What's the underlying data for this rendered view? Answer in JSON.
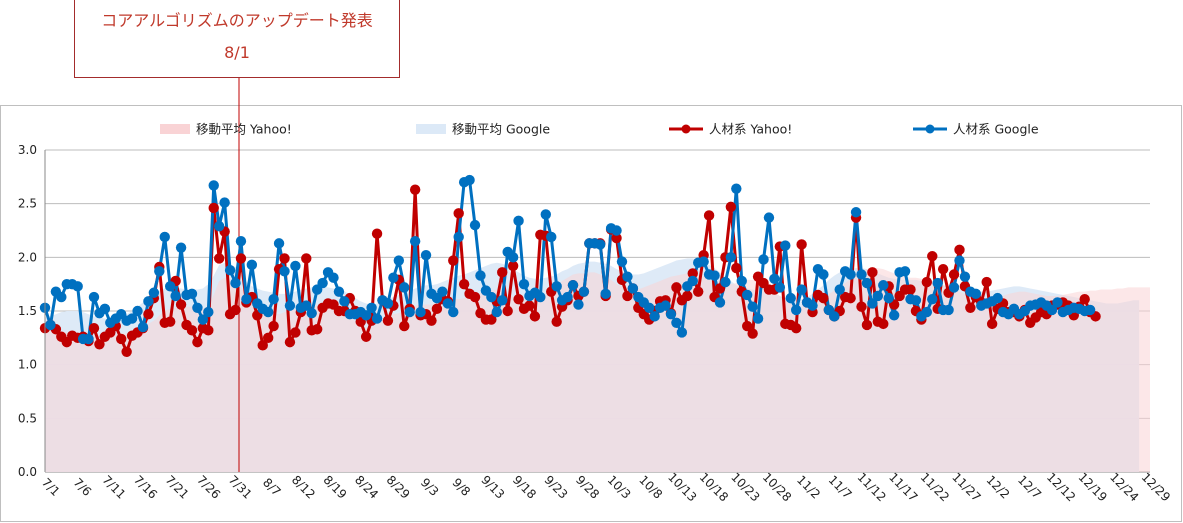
{
  "annotation": {
    "title": "コアアルゴリズムのアップデート発表",
    "date": "8/1"
  },
  "colors": {
    "yahoo_line": "#c00000",
    "google_line": "#0070c0",
    "yahoo_area": "#f9d3d5",
    "google_area": "#dce9f7",
    "overlap_area": "#e4dbea",
    "annotation": "#c0392b"
  },
  "chart_data": {
    "type": "line",
    "ylim": [
      0,
      3
    ],
    "yticks": [
      "0.0",
      "0.5",
      "1.0",
      "1.5",
      "2.0",
      "2.5",
      "3.0"
    ],
    "xticks": [
      "7/1",
      "7/6",
      "7/11",
      "7/16",
      "7/21",
      "7/26",
      "7/31",
      "8/7",
      "8/12",
      "8/19",
      "8/24",
      "8/29",
      "9/3",
      "9/8",
      "9/13",
      "9/18",
      "9/23",
      "9/28",
      "10/3",
      "10/8",
      "10/13",
      "10/18",
      "10/23",
      "10/28",
      "11/2",
      "11/7",
      "11/12",
      "11/17",
      "11/22",
      "11/27",
      "12/2",
      "12/7",
      "12/12",
      "12/19",
      "12/24",
      "12/29"
    ],
    "legend_position": "top",
    "grid": true,
    "series": [
      {
        "name": "移動平均 Yahoo!",
        "kind": "area",
        "values": [
          1.31,
          1.31,
          1.32,
          1.31,
          1.3,
          1.29,
          1.28,
          1.29,
          1.28,
          1.27,
          1.27,
          1.27,
          1.28,
          1.28,
          1.29,
          1.29,
          1.31,
          1.33,
          1.35,
          1.38,
          1.41,
          1.46,
          1.5,
          1.52,
          1.53,
          1.53,
          1.54,
          1.54,
          1.53,
          1.52,
          1.55,
          1.65,
          1.78,
          1.81,
          1.79,
          1.79,
          1.72,
          1.65,
          1.63,
          1.62,
          1.55,
          1.5,
          1.48,
          1.47,
          1.49,
          1.5,
          1.52,
          1.53,
          1.53,
          1.54,
          1.55,
          1.56,
          1.55,
          1.53,
          1.5,
          1.48,
          1.46,
          1.4,
          1.36,
          1.34,
          1.35,
          1.38,
          1.41,
          1.45,
          1.47,
          1.48,
          1.5,
          1.52,
          1.55,
          1.56,
          1.56,
          1.56,
          1.58,
          1.6,
          1.6,
          1.61,
          1.61,
          1.62,
          1.64,
          1.65,
          1.67,
          1.68,
          1.69,
          1.7,
          1.68,
          1.66,
          1.63,
          1.62,
          1.6,
          1.6,
          1.61,
          1.63,
          1.66,
          1.69,
          1.73,
          1.78,
          1.81,
          1.84,
          1.85,
          1.85,
          1.86,
          1.86,
          1.84,
          1.82,
          1.79,
          1.75,
          1.73,
          1.71,
          1.7,
          1.7,
          1.72,
          1.74,
          1.76,
          1.78,
          1.8,
          1.82,
          1.83,
          1.84,
          1.85,
          1.85,
          1.84,
          1.82,
          1.8,
          1.78,
          1.76,
          1.75,
          1.75,
          1.76,
          1.78,
          1.79,
          1.79,
          1.78,
          1.76,
          1.73,
          1.69,
          1.64,
          1.6,
          1.57,
          1.55,
          1.54,
          1.55,
          1.57,
          1.6,
          1.63,
          1.66,
          1.69,
          1.72,
          1.76,
          1.8,
          1.84,
          1.87,
          1.89,
          1.9,
          1.9,
          1.89,
          1.87,
          1.85,
          1.83,
          1.82,
          1.81,
          1.81,
          1.8,
          1.79,
          1.78,
          1.76,
          1.74,
          1.72,
          1.7,
          1.68,
          1.66,
          1.64,
          1.62,
          1.61,
          1.61,
          1.62,
          1.63,
          1.64,
          1.66,
          1.67,
          1.68,
          1.68,
          1.67,
          1.66,
          1.65,
          1.64,
          1.64,
          1.64,
          1.65,
          1.66,
          1.67,
          1.68,
          1.68,
          1.69,
          1.69,
          1.7,
          1.7,
          1.7,
          1.71,
          1.71,
          1.72,
          1.72,
          1.72,
          1.72,
          1.72
        ]
      },
      {
        "name": "移動平均 Google",
        "kind": "area",
        "values": [
          1.44,
          1.45,
          1.47,
          1.49,
          1.5,
          1.5,
          1.5,
          1.49,
          1.47,
          1.45,
          1.44,
          1.43,
          1.43,
          1.44,
          1.45,
          1.47,
          1.5,
          1.54,
          1.58,
          1.62,
          1.66,
          1.69,
          1.71,
          1.72,
          1.72,
          1.71,
          1.7,
          1.7,
          1.7,
          1.71,
          1.75,
          1.83,
          1.93,
          1.95,
          1.93,
          1.91,
          1.84,
          1.77,
          1.73,
          1.71,
          1.69,
          1.68,
          1.67,
          1.66,
          1.66,
          1.67,
          1.68,
          1.7,
          1.71,
          1.72,
          1.73,
          1.73,
          1.72,
          1.71,
          1.7,
          1.68,
          1.66,
          1.62,
          1.59,
          1.57,
          1.56,
          1.57,
          1.59,
          1.61,
          1.63,
          1.65,
          1.67,
          1.69,
          1.71,
          1.73,
          1.74,
          1.74,
          1.75,
          1.77,
          1.79,
          1.81,
          1.83,
          1.84,
          1.86,
          1.88,
          1.9,
          1.92,
          1.94,
          1.95,
          1.94,
          1.92,
          1.89,
          1.86,
          1.83,
          1.81,
          1.8,
          1.8,
          1.81,
          1.82,
          1.84,
          1.87,
          1.89,
          1.92,
          1.94,
          1.95,
          1.96,
          1.96,
          1.95,
          1.94,
          1.92,
          1.89,
          1.87,
          1.85,
          1.84,
          1.84,
          1.85,
          1.87,
          1.89,
          1.91,
          1.93,
          1.95,
          1.97,
          1.98,
          1.99,
          1.99,
          1.98,
          1.96,
          1.93,
          1.9,
          1.86,
          1.82,
          1.78,
          1.74,
          1.72,
          1.71,
          1.7,
          1.69,
          1.68,
          1.67,
          1.66,
          1.64,
          1.62,
          1.61,
          1.6,
          1.61,
          1.63,
          1.66,
          1.7,
          1.74,
          1.79,
          1.83,
          1.86,
          1.88,
          1.89,
          1.9,
          1.9,
          1.89,
          1.87,
          1.85,
          1.83,
          1.81,
          1.8,
          1.79,
          1.79,
          1.79,
          1.79,
          1.78,
          1.77,
          1.76,
          1.75,
          1.74,
          1.73,
          1.72,
          1.71,
          1.7,
          1.69,
          1.68,
          1.68,
          1.68,
          1.69,
          1.7,
          1.71,
          1.72,
          1.73,
          1.73,
          1.72,
          1.71,
          1.7,
          1.69,
          1.68,
          1.67,
          1.66,
          1.65,
          1.64,
          1.63,
          1.62,
          1.61,
          1.6,
          1.59,
          1.58,
          1.57,
          1.57,
          1.57,
          1.58,
          1.59,
          1.6,
          1.6
        ]
      },
      {
        "name": "人材系 Yahoo!",
        "kind": "line",
        "values": [
          1.34,
          1.37,
          1.33,
          1.26,
          1.21,
          1.27,
          1.25,
          1.26,
          1.22,
          1.34,
          1.19,
          1.26,
          1.3,
          1.36,
          1.24,
          1.12,
          1.27,
          1.3,
          1.34,
          1.47,
          1.62,
          1.91,
          1.39,
          1.4,
          1.78,
          1.56,
          1.37,
          1.32,
          1.21,
          1.34,
          1.32,
          2.46,
          1.99,
          2.24,
          1.47,
          1.51,
          1.99,
          1.58,
          1.63,
          1.46,
          1.18,
          1.25,
          1.36,
          1.89,
          1.99,
          1.21,
          1.3,
          1.49,
          1.99,
          1.32,
          1.33,
          1.53,
          1.57,
          1.56,
          1.5,
          1.5,
          1.62,
          1.5,
          1.4,
          1.26,
          1.41,
          2.22,
          1.6,
          1.41,
          1.55,
          1.79,
          1.36,
          1.52,
          2.63,
          1.46,
          1.47,
          1.41,
          1.52,
          1.61,
          1.59,
          1.97,
          2.41,
          1.75,
          1.66,
          1.63,
          1.48,
          1.42,
          1.42,
          1.59,
          1.86,
          1.5,
          1.92,
          1.61,
          1.52,
          1.55,
          1.45,
          2.21,
          2.2,
          1.68,
          1.4,
          1.54,
          1.6,
          1.74,
          1.64,
          1.68,
          2.13,
          2.13,
          2.13,
          1.64,
          2.26,
          2.18,
          1.79,
          1.64,
          1.71,
          1.53,
          1.47,
          1.42,
          1.5,
          1.59,
          1.6,
          1.48,
          1.72,
          1.6,
          1.64,
          1.85,
          1.68,
          2.02,
          2.39,
          1.63,
          1.71,
          2.0,
          2.47,
          1.9,
          1.68,
          1.36,
          1.29,
          1.82,
          1.76,
          1.7,
          1.7,
          2.1,
          1.38,
          1.37,
          1.34,
          2.12,
          1.58,
          1.49,
          1.65,
          1.62,
          1.51,
          1.45,
          1.5,
          1.63,
          1.62,
          2.37,
          1.54,
          1.37,
          1.86,
          1.4,
          1.38,
          1.73,
          1.56,
          1.64,
          1.7,
          1.7,
          1.5,
          1.42,
          1.77,
          2.01,
          1.52,
          1.89,
          1.67,
          1.84,
          2.07,
          1.73,
          1.53,
          1.63,
          1.58,
          1.77,
          1.38,
          1.52,
          1.57,
          1.49,
          1.49,
          1.45,
          1.51,
          1.39,
          1.44,
          1.49,
          1.47,
          1.55,
          1.56,
          1.58,
          1.55,
          1.46,
          1.54,
          1.61,
          1.49,
          1.45
        ]
      },
      {
        "name": "人材系 Google",
        "kind": "line",
        "values": [
          1.53,
          1.37,
          1.68,
          1.63,
          1.75,
          1.75,
          1.73,
          1.24,
          1.24,
          1.63,
          1.48,
          1.52,
          1.39,
          1.43,
          1.47,
          1.41,
          1.43,
          1.5,
          1.35,
          1.59,
          1.67,
          1.87,
          2.19,
          1.73,
          1.64,
          2.09,
          1.65,
          1.66,
          1.53,
          1.42,
          1.49,
          2.67,
          2.29,
          2.51,
          1.88,
          1.76,
          2.15,
          1.61,
          1.93,
          1.57,
          1.52,
          1.49,
          1.61,
          2.13,
          1.87,
          1.55,
          1.92,
          1.53,
          1.55,
          1.48,
          1.7,
          1.76,
          1.86,
          1.81,
          1.68,
          1.59,
          1.47,
          1.47,
          1.49,
          1.46,
          1.53,
          1.43,
          1.6,
          1.57,
          1.81,
          1.97,
          1.72,
          1.49,
          2.15,
          1.49,
          2.02,
          1.66,
          1.62,
          1.68,
          1.57,
          1.49,
          2.19,
          2.7,
          2.72,
          2.3,
          1.83,
          1.69,
          1.63,
          1.49,
          1.6,
          2.05,
          2.0,
          2.34,
          1.75,
          1.64,
          1.67,
          1.63,
          2.4,
          2.19,
          1.73,
          1.6,
          1.63,
          1.74,
          1.56,
          1.68,
          2.13,
          2.13,
          2.12,
          1.66,
          2.27,
          2.25,
          1.96,
          1.82,
          1.71,
          1.63,
          1.58,
          1.53,
          1.45,
          1.53,
          1.55,
          1.47,
          1.39,
          1.3,
          1.73,
          1.78,
          1.95,
          1.96,
          1.84,
          1.83,
          1.58,
          1.77,
          2.0,
          2.64,
          1.78,
          1.65,
          1.54,
          1.43,
          1.98,
          2.37,
          1.8,
          1.72,
          2.11,
          1.62,
          1.51,
          1.7,
          1.58,
          1.55,
          1.89,
          1.84,
          1.51,
          1.45,
          1.7,
          1.87,
          1.84,
          2.42,
          1.84,
          1.76,
          1.57,
          1.64,
          1.74,
          1.62,
          1.46,
          1.86,
          1.87,
          1.61,
          1.6,
          1.45,
          1.49,
          1.61,
          1.76,
          1.51,
          1.51,
          1.72,
          1.97,
          1.82,
          1.68,
          1.66,
          1.55,
          1.57,
          1.59,
          1.62,
          1.49,
          1.47,
          1.52,
          1.47,
          1.5,
          1.55,
          1.56,
          1.58,
          1.55,
          1.51,
          1.58,
          1.49,
          1.51,
          1.53,
          1.52,
          1.5,
          1.51
        ]
      }
    ]
  }
}
